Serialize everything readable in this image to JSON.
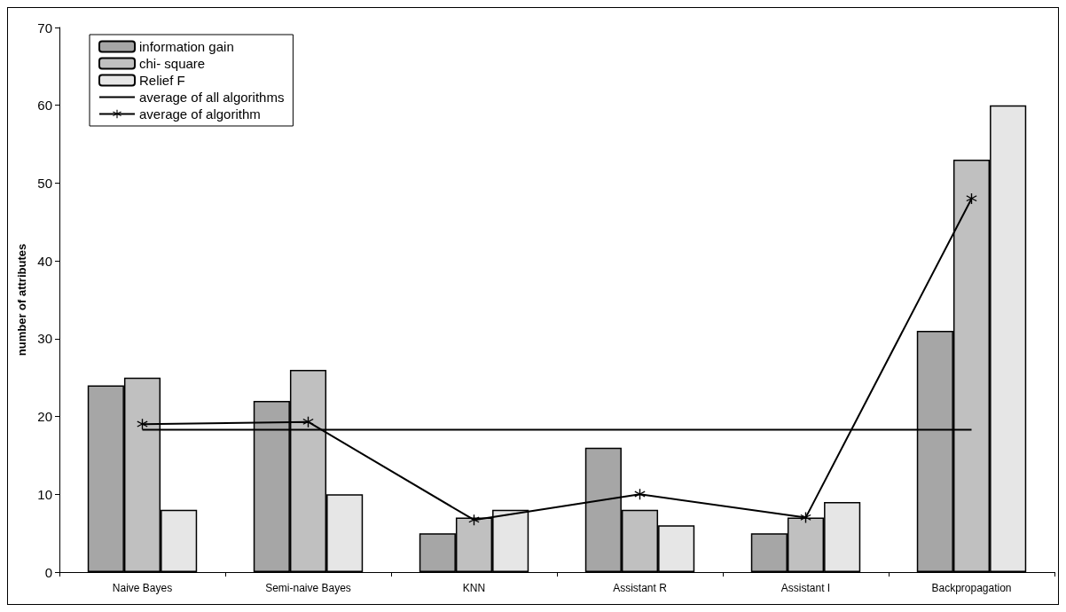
{
  "chart_data": {
    "type": "bar",
    "ylabel": "number of attributes",
    "categories": [
      "Naive Bayes",
      "Semi-naive Bayes",
      "KNN",
      "Assistant R",
      "Assistant I",
      "Backpropagation"
    ],
    "series": [
      {
        "name": "information gain",
        "color": "#a6a6a6",
        "values": [
          24,
          22,
          5,
          16,
          5,
          31
        ]
      },
      {
        "name": "chi- square",
        "color": "#c0c0c0",
        "values": [
          25,
          26,
          7,
          8,
          7,
          53
        ]
      },
      {
        "name": "Relief F",
        "color": "#e6e6e6",
        "values": [
          8,
          10,
          8,
          6,
          9,
          60
        ]
      },
      {
        "name": "average of all algorithms",
        "type": "line",
        "color": "#000000",
        "marker": "none",
        "values": [
          18.3,
          18.3,
          18.3,
          18.3,
          18.3,
          18.3
        ]
      },
      {
        "name": "average of algorithm",
        "type": "line",
        "color": "#000000",
        "marker": "cross",
        "values": [
          19,
          19.3,
          6.7,
          10,
          7,
          48
        ]
      }
    ],
    "ylim": [
      0,
      70
    ],
    "yticks": [
      0,
      10,
      20,
      30,
      40,
      50,
      60,
      70
    ],
    "grid": false,
    "legend": "top left"
  }
}
